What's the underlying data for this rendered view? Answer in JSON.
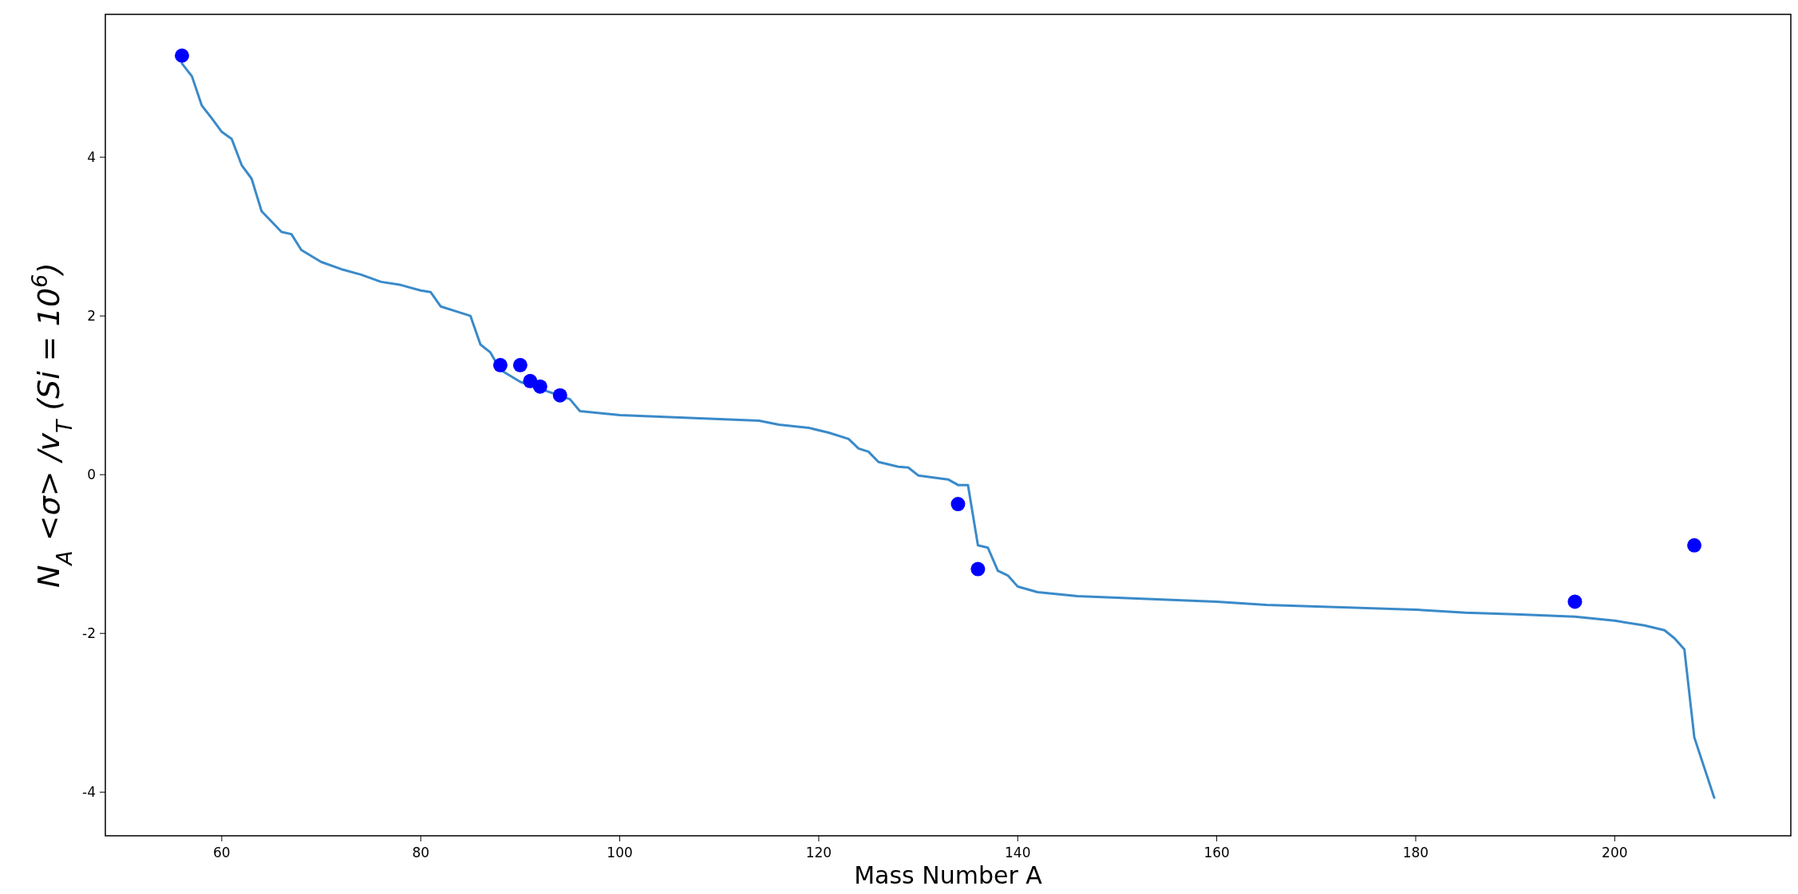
{
  "chart_data": {
    "type": "line",
    "xlabel": "Mass Number A",
    "ylabel": "N$_{A}$ <σ> /v$_{T}$ (Si = 10$^{6}$)",
    "xlim": [
      48.3,
      217.7
    ],
    "ylim": [
      -4.55,
      5.8
    ],
    "xticks": [
      60,
      80,
      100,
      120,
      140,
      160,
      180,
      200
    ],
    "yticks": [
      -4,
      -2,
      0,
      2,
      4
    ],
    "grid": false,
    "series": [
      {
        "color": "#3a8ac9",
        "x": [
          56,
          57,
          58,
          59,
          60,
          61,
          62,
          63,
          64,
          66,
          67,
          68,
          70,
          72,
          74,
          76,
          78,
          80,
          81,
          82,
          84,
          85,
          86,
          87,
          88,
          90,
          95,
          96,
          100,
          110,
          114,
          116,
          119,
          121,
          123,
          124,
          125,
          126,
          128,
          129,
          130,
          133,
          134,
          135,
          136,
          137,
          138,
          139,
          140,
          142,
          146,
          150,
          160,
          165,
          170,
          180,
          185,
          190,
          196,
          200,
          203,
          205,
          206,
          207,
          208,
          210
        ],
        "values": [
          5.18,
          5.02,
          4.65,
          4.49,
          4.32,
          4.23,
          3.9,
          3.73,
          3.32,
          3.06,
          3.03,
          2.83,
          2.68,
          2.59,
          2.52,
          2.43,
          2.39,
          2.32,
          2.3,
          2.12,
          2.04,
          2.0,
          1.64,
          1.54,
          1.32,
          1.17,
          0.95,
          0.8,
          0.75,
          0.7,
          0.68,
          0.63,
          0.59,
          0.53,
          0.45,
          0.33,
          0.29,
          0.16,
          0.1,
          0.09,
          -0.01,
          -0.06,
          -0.13,
          -0.13,
          -0.89,
          -0.92,
          -1.21,
          -1.27,
          -1.41,
          -1.48,
          -1.53,
          -1.55,
          -1.6,
          -1.64,
          -1.66,
          -1.7,
          -1.74,
          -1.76,
          -1.79,
          -1.84,
          -1.9,
          -1.96,
          -2.06,
          -2.2,
          -3.31,
          -4.07
        ]
      },
      {
        "type": "scatter",
        "color": "#0000ff",
        "marker": "circle",
        "x": [
          56,
          88,
          90,
          91,
          92,
          94,
          134,
          136,
          196,
          208
        ],
        "values": [
          5.28,
          1.38,
          1.38,
          1.18,
          1.11,
          1.0,
          -0.37,
          -1.19,
          -1.6,
          -0.89
        ]
      }
    ]
  }
}
